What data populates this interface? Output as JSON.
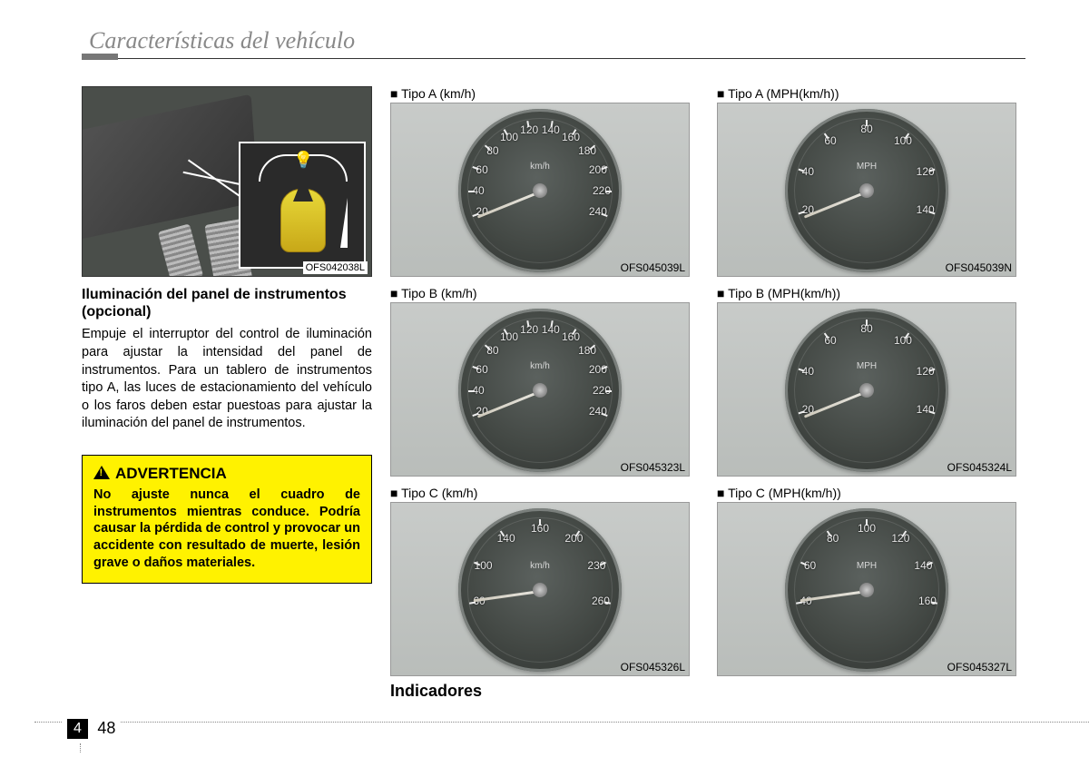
{
  "header": {
    "title": "Características del vehículo"
  },
  "photo": {
    "caption": "OFS042038L"
  },
  "section": {
    "subhead": "Iluminación del panel de instrumentos (opcional)",
    "body": "Empuje el interruptor del control de iluminación para ajustar la intensidad del panel de instrumentos.  Para un tablero de instrumentos tipo A, las luces de estacionamiento del vehículo o los faros deben estar puestoas para ajustar la iluminación del panel de instrumentos."
  },
  "warning": {
    "title": "ADVERTENCIA",
    "text": "No ajuste nunca el cuadro de instrumentos mientras conduce. Podría causar la pérdida de control y provocar un accidente con resultado de muerte, lesión grave o daños materiales."
  },
  "gauges": [
    {
      "label": "■ Tipo A (km/h)",
      "caption": "OFS045039L",
      "unit": "km/h",
      "numbers": [
        "20",
        "40",
        "60",
        "80",
        "100",
        "120",
        "140",
        "160",
        "180",
        "200",
        "220",
        "240"
      ],
      "start_deg": 200,
      "end_deg": -20,
      "needle_deg": 158
    },
    {
      "label": "■ Tipo A (MPH(km/h))",
      "caption": "OFS045039N",
      "unit": "MPH",
      "numbers": [
        "20",
        "40",
        "60",
        "80",
        "100",
        "120",
        "140"
      ],
      "start_deg": 198,
      "end_deg": -18,
      "needle_deg": 158
    },
    {
      "label": "■ Tipo B (km/h)",
      "caption": "OFS045323L",
      "unit": "km/h",
      "numbers": [
        "20",
        "40",
        "60",
        "80",
        "100",
        "120",
        "140",
        "160",
        "180",
        "200",
        "220",
        "240"
      ],
      "start_deg": 200,
      "end_deg": -20,
      "needle_deg": 158
    },
    {
      "label": "■ Tipo B (MPH(km/h))",
      "caption": "OFS045324L",
      "unit": "MPH",
      "numbers": [
        "20",
        "40",
        "60",
        "80",
        "100",
        "120",
        "140"
      ],
      "start_deg": 198,
      "end_deg": -18,
      "needle_deg": 158
    },
    {
      "label": "■ Tipo C (km/h)",
      "caption": "OFS045326L",
      "unit": "km/h",
      "numbers": [
        "60",
        "100",
        "140",
        "160",
        "200",
        "230",
        "260"
      ],
      "start_deg": 190,
      "end_deg": -10,
      "needle_deg": 172
    },
    {
      "label": "■ Tipo C (MPH(km/h))",
      "caption": "OFS045327L",
      "unit": "MPH",
      "numbers": [
        "40",
        "60",
        "80",
        "100",
        "120",
        "140",
        "160"
      ],
      "start_deg": 190,
      "end_deg": -10,
      "needle_deg": 172
    }
  ],
  "indicators_head": "Indicadores",
  "footer": {
    "chapter": "4",
    "page": "48"
  }
}
